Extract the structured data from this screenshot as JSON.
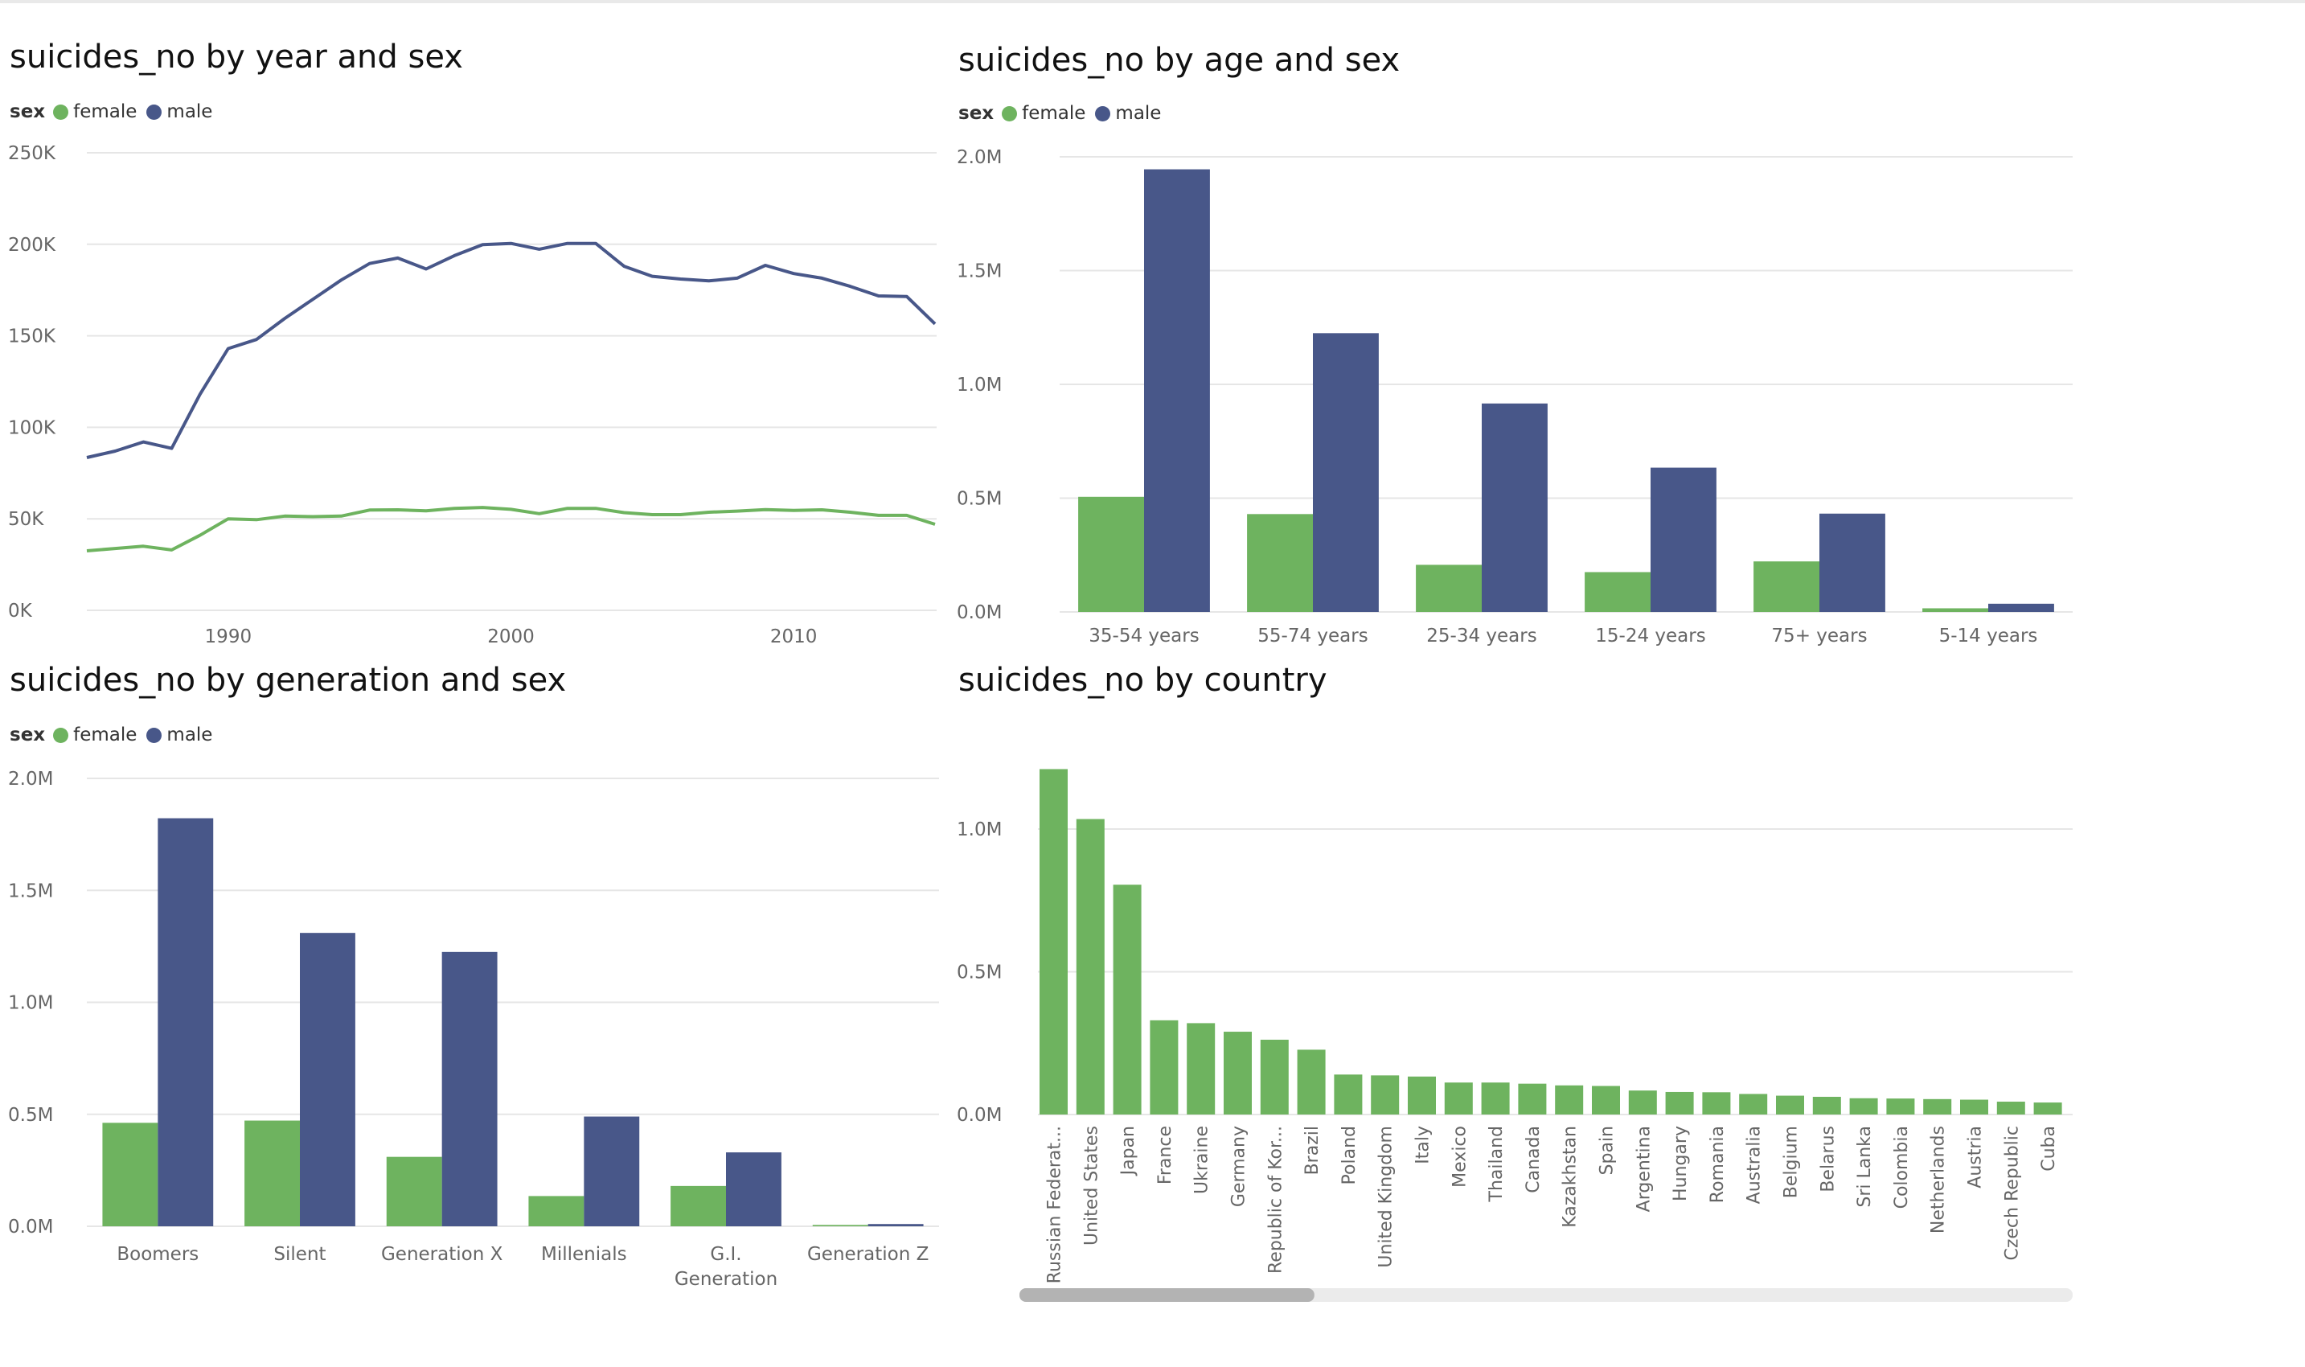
{
  "chart_data": [
    {
      "id": "by_year",
      "type": "line",
      "title": "suicides_no by year and sex",
      "legend_title": "sex",
      "legend_position": "top-left",
      "grid": true,
      "ylim": [
        0,
        250000
      ],
      "yticks": [
        "0K",
        "50K",
        "100K",
        "150K",
        "200K",
        "250K"
      ],
      "xlim": [
        1985,
        2015
      ],
      "xticks": [
        "1990",
        "2000",
        "2010"
      ],
      "x": [
        1985,
        1986,
        1987,
        1988,
        1989,
        1990,
        1991,
        1992,
        1993,
        1994,
        1995,
        1996,
        1997,
        1998,
        1999,
        2000,
        2001,
        2002,
        2003,
        2004,
        2005,
        2006,
        2007,
        2008,
        2009,
        2010,
        2011,
        2012,
        2013,
        2014,
        2015
      ],
      "series": [
        {
          "name": "female",
          "color": "#6eb35f",
          "values": [
            32500,
            33800,
            35000,
            33000,
            41000,
            50000,
            49500,
            51500,
            51200,
            51500,
            54800,
            54900,
            54400,
            55700,
            56200,
            55200,
            52800,
            55700,
            55700,
            53400,
            52300,
            52300,
            53600,
            54200,
            55000,
            54600,
            54900,
            53600,
            51900,
            51900,
            47000
          ]
        },
        {
          "name": "male",
          "color": "#485789",
          "values": [
            83500,
            87000,
            92000,
            88500,
            118000,
            143000,
            148000,
            159500,
            170000,
            180500,
            189500,
            192500,
            186500,
            193800,
            199800,
            200500,
            197300,
            200500,
            200500,
            188000,
            182500,
            181000,
            180000,
            181500,
            188500,
            184000,
            181500,
            177000,
            171800,
            171500,
            156500
          ]
        }
      ]
    },
    {
      "id": "by_age",
      "type": "bar",
      "title": "suicides_no by age and sex",
      "legend_title": "sex",
      "legend_position": "top-left",
      "grid": true,
      "ylim": [
        0,
        2000000
      ],
      "yticks": [
        "0.0M",
        "0.5M",
        "1.0M",
        "1.5M",
        "2.0M"
      ],
      "categories": [
        "35-54 years",
        "55-74 years",
        "25-34 years",
        "15-24 years",
        "75+ years",
        "5-14 years"
      ],
      "series": [
        {
          "name": "female",
          "color": "#6eb35f",
          "values": [
            506000,
            430000,
            207000,
            175000,
            222000,
            16000
          ]
        },
        {
          "name": "male",
          "color": "#485789",
          "values": [
            1945000,
            1225000,
            916000,
            634000,
            432000,
            36000
          ]
        }
      ]
    },
    {
      "id": "by_generation",
      "type": "bar",
      "title": "suicides_no by generation and sex",
      "legend_title": "sex",
      "legend_position": "top-left",
      "grid": true,
      "ylim": [
        0,
        2000000
      ],
      "yticks": [
        "0.0M",
        "0.5M",
        "1.0M",
        "1.5M",
        "2.0M"
      ],
      "categories": [
        [
          "Boomers"
        ],
        [
          "Silent"
        ],
        [
          "Generation X"
        ],
        [
          "Millenials"
        ],
        [
          "G.I.",
          "Generation"
        ],
        [
          "Generation Z"
        ]
      ],
      "series": [
        {
          "name": "female",
          "color": "#6eb35f",
          "values": [
            462000,
            472000,
            310000,
            135000,
            180000,
            6000
          ]
        },
        {
          "name": "male",
          "color": "#485789",
          "values": [
            1822000,
            1310000,
            1225000,
            490000,
            330000,
            10000
          ]
        }
      ]
    },
    {
      "id": "by_country",
      "type": "bar",
      "title": "suicides_no by country",
      "grid": true,
      "ylim": [
        0,
        1200000
      ],
      "yticks": [
        {
          "label": "0.0M",
          "value": 0
        },
        {
          "label": "0.5M",
          "value": 500000
        },
        {
          "label": "1.0M",
          "value": 1000000
        }
      ],
      "categories": [
        "Russian Federat...",
        "United States",
        "Japan",
        "France",
        "Ukraine",
        "Germany",
        "Republic of Kor...",
        "Brazil",
        "Poland",
        "United Kingdom",
        "Italy",
        "Mexico",
        "Thailand",
        "Canada",
        "Kazakhstan",
        "Spain",
        "Argentina",
        "Hungary",
        "Romania",
        "Australia",
        "Belgium",
        "Belarus",
        "Sri Lanka",
        "Colombia",
        "Netherlands",
        "Austria",
        "Czech Republic",
        "Cuba"
      ],
      "series": [
        {
          "name": "",
          "color": "#6eb35f",
          "values": [
            1210000,
            1035000,
            805000,
            330000,
            320000,
            290000,
            262000,
            227000,
            140000,
            137000,
            133000,
            112000,
            112000,
            108000,
            102000,
            100000,
            84000,
            79000,
            78000,
            72000,
            66000,
            62000,
            57000,
            56000,
            54000,
            52000,
            45000,
            42000
          ]
        }
      ],
      "scrollbar": {
        "visible_fraction": 0.28,
        "position": 0
      }
    }
  ],
  "colors": {
    "female": "#6eb35f",
    "male": "#485789",
    "grid": "#e6e6e6",
    "axis_text": "#666666"
  }
}
